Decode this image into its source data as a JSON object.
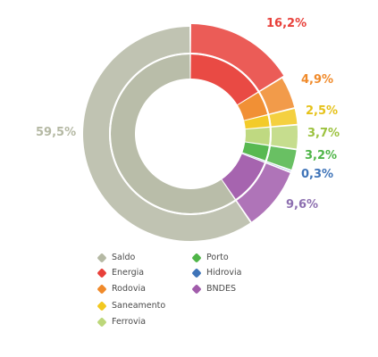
{
  "chart_data": {
    "type": "donut",
    "series": [
      {
        "name": "Saldo",
        "value": 59.5,
        "label": "59,5%",
        "color": "#b5b9a4"
      },
      {
        "name": "Energia",
        "value": 16.2,
        "label": "16,2%",
        "color": "#e8403a"
      },
      {
        "name": "Rodovia",
        "value": 4.9,
        "label": "4,9%",
        "color": "#f08a2a"
      },
      {
        "name": "Saneamento",
        "value": 2.5,
        "label": "2,5%",
        "color": "#f2c81f"
      },
      {
        "name": "Ferrovia",
        "value": 3.7,
        "label": "3,7%",
        "color": "#bcd77a"
      },
      {
        "name": "Porto",
        "value": 3.2,
        "label": "3,2%",
        "color": "#4fb548"
      },
      {
        "name": "Hidrovia",
        "value": 0.3,
        "label": "0,3%",
        "color": "#3f74b8"
      },
      {
        "name": "BNDES",
        "value": 9.6,
        "label": "9,6%",
        "color": "#a15cab"
      }
    ],
    "label_colors": {
      "Saldo": "#b5b9a4",
      "Energia": "#e8403a",
      "Rodovia": "#f08a2a",
      "Saneamento": "#e6c21a",
      "Ferrovia": "#9cc23f",
      "Porto": "#4fb548",
      "Hidrovia": "#3f74b8",
      "BNDES": "#8d6fb0"
    },
    "start_angle_deg": 0,
    "direction": "clockwise",
    "legend_placement": "bottom"
  },
  "legend": {
    "columns": [
      [
        "Saldo",
        "Energia",
        "Rodovia",
        "Saneamento",
        "Ferrovia"
      ],
      [
        "Porto",
        "Hidrovia",
        "BNDES"
      ]
    ]
  }
}
